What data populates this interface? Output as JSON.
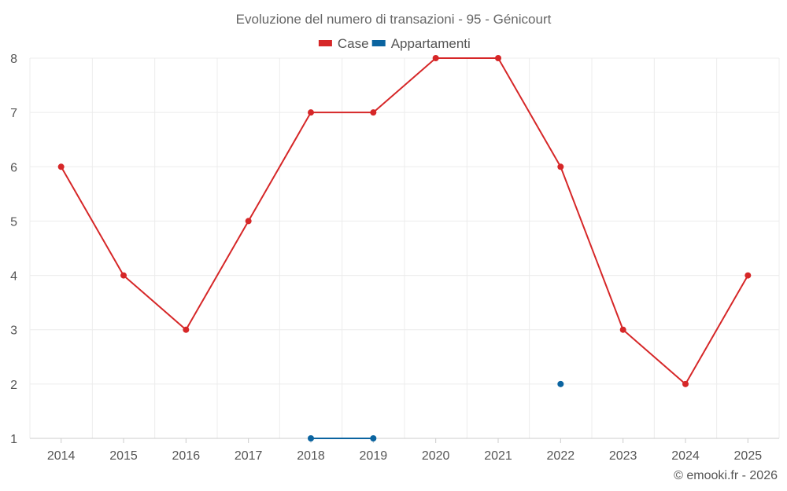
{
  "chart_data": {
    "type": "line",
    "title": "Evoluzione del numero di transazioni - 95 - Génicourt",
    "categories": [
      "2014",
      "2015",
      "2016",
      "2017",
      "2018",
      "2019",
      "2020",
      "2021",
      "2022",
      "2023",
      "2024",
      "2025"
    ],
    "series": [
      {
        "name": "Case",
        "color": "#d62728",
        "values": [
          6,
          4,
          3,
          5,
          7,
          7,
          8,
          8,
          6,
          3,
          2,
          4
        ]
      },
      {
        "name": "Appartamenti",
        "color": "#0b64a0",
        "values": [
          null,
          null,
          null,
          null,
          1,
          1,
          null,
          null,
          2,
          null,
          null,
          null
        ]
      }
    ],
    "ylim": [
      1,
      8
    ],
    "yticks": [
      1,
      2,
      3,
      4,
      5,
      6,
      7,
      8
    ],
    "grid": true,
    "legend": "top-center",
    "credit": "© emooki.fr - 2026"
  }
}
